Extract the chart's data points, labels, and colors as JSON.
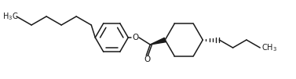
{
  "bg_color": "#ffffff",
  "line_color": "#1a1a1a",
  "line_width": 1.1,
  "figsize": [
    3.77,
    1.01
  ],
  "dpi": 100
}
